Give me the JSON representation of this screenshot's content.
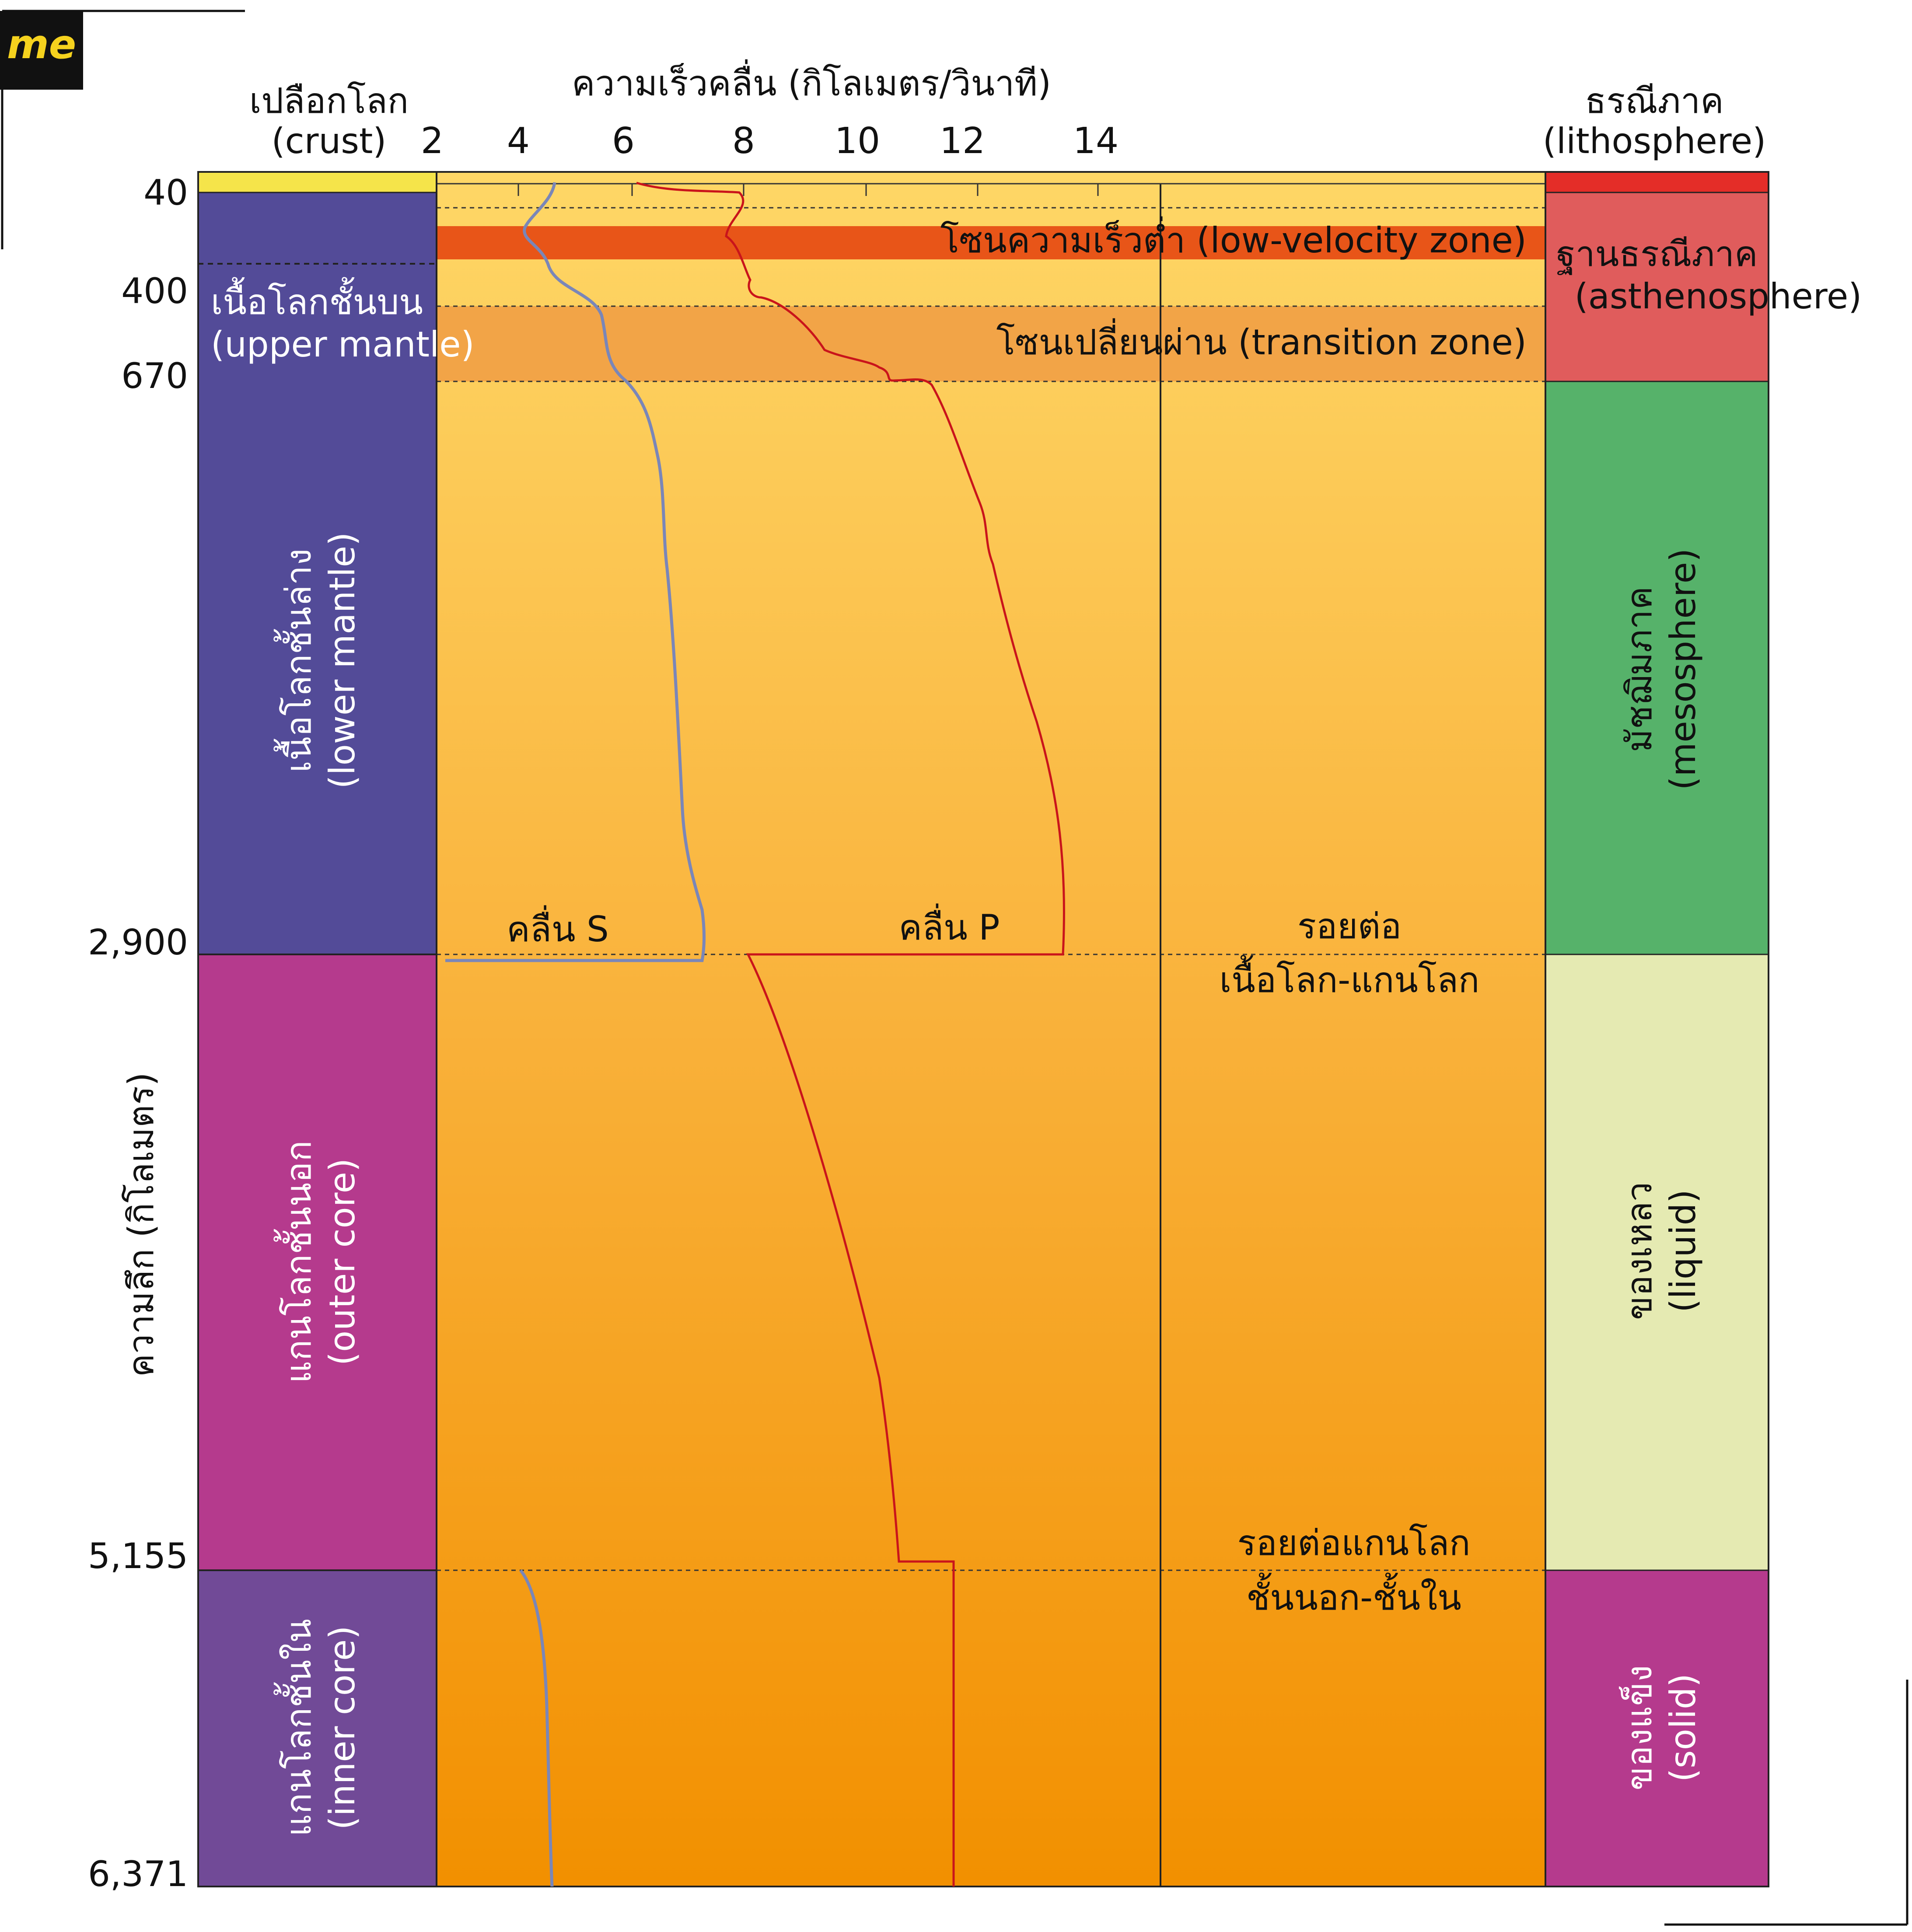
{
  "logo": {
    "text": "me",
    "bg": "#111111",
    "fg": "#f5d21e"
  },
  "headers": {
    "crust_th": "เปลือกโลก",
    "crust_en": "(crust)",
    "velocity": "ความเร็วคลื่น (กิโลเมตร/วินาที)",
    "litho_th": "ธรณีภาค",
    "litho_en": "(lithosphere)"
  },
  "velocity_ticks": [
    "2",
    "4",
    "6",
    "8",
    "10",
    "12",
    "14"
  ],
  "depth_axis": {
    "label": "ความลึก (กิโลเมตร)",
    "ticks": [
      "40",
      "400",
      "670",
      "2,900",
      "5,155",
      "6,371"
    ]
  },
  "layers": {
    "upper_mantle_th": "เนื้อโลกชั้นบน",
    "upper_mantle_en": "(upper mantle)",
    "lower_mantle_th": "เนื้อโลกชั้นล่าง",
    "lower_mantle_en": "(lower mantle)",
    "outer_core_th": "แกนโลกชั้นนอก",
    "outer_core_en": "(outer core)",
    "inner_core_th": "แกนโลกชั้นใน",
    "inner_core_en": "(inner core)"
  },
  "zones": {
    "low_velocity": "โซนความเร็วต่ำ (low-velocity zone)",
    "transition": "โซนเปลี่ยนผ่าน (transition zone)"
  },
  "waves": {
    "s_label": "คลื่น S",
    "p_label": "คลื่น P"
  },
  "boundaries": {
    "mantle_core_1": "รอยต่อ",
    "mantle_core_2": "เนื้อโลก-แกนโลก",
    "inner_outer_1": "รอยต่อแกนโลก",
    "inner_outer_2": "ชั้นนอก-ชั้นใน"
  },
  "right_column": {
    "asthenosphere_th": "ฐานธรณีภาค",
    "asthenosphere_en": "(asthenosphere)",
    "mesosphere_th": "มัชฌิมภาค",
    "mesosphere_en": "(mesosphere)",
    "liquid_th": "ของเหลว",
    "liquid_en": "(liquid)",
    "solid_th": "ของแข็ง",
    "solid_en": "(solid)"
  },
  "colors": {
    "crust": "#f5e44a",
    "mantle": "#534b98",
    "outer_core": "#b53a8d",
    "inner_core": "#714a97",
    "lithosphere": "#e42d28",
    "asthenosphere": "#e05c5c",
    "mesosphere": "#56b26a",
    "liquid": "#e5eab2",
    "solid": "#b53a8d",
    "low_velocity_zone": "#e85518",
    "transition_zone": "#f2a447",
    "s_wave": "#7a86b8",
    "p_wave": "#c9141b"
  }
}
